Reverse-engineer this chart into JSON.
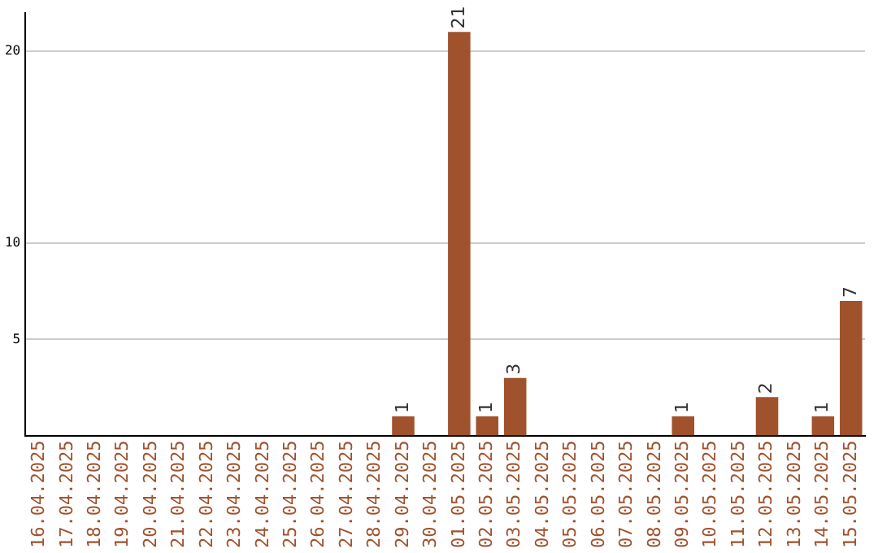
{
  "chart_data": {
    "type": "bar",
    "categories": [
      "16.04.2025",
      "17.04.2025",
      "18.04.2025",
      "19.04.2025",
      "20.04.2025",
      "21.04.2025",
      "22.04.2025",
      "23.04.2025",
      "24.04.2025",
      "25.04.2025",
      "26.04.2025",
      "27.04.2025",
      "28.04.2025",
      "29.04.2025",
      "30.04.2025",
      "01.05.2025",
      "02.05.2025",
      "03.05.2025",
      "04.05.2025",
      "05.05.2025",
      "06.05.2025",
      "07.05.2025",
      "08.05.2025",
      "09.05.2025",
      "10.05.2025",
      "11.05.2025",
      "12.05.2025",
      "13.05.2025",
      "14.05.2025",
      "15.05.2025"
    ],
    "values": [
      0,
      0,
      0,
      0,
      0,
      0,
      0,
      0,
      0,
      0,
      0,
      0,
      0,
      1,
      0,
      21,
      1,
      3,
      0,
      0,
      0,
      0,
      0,
      1,
      0,
      0,
      2,
      0,
      1,
      7
    ],
    "value_labels": [
      null,
      null,
      null,
      null,
      null,
      null,
      null,
      null,
      null,
      null,
      null,
      null,
      null,
      "1",
      null,
      "21",
      "1",
      "3",
      null,
      null,
      null,
      null,
      null,
      "1",
      null,
      null,
      "2",
      null,
      "1",
      "7"
    ],
    "color": "#a0522d",
    "ylim": [
      0,
      22
    ],
    "yticks": [
      5,
      10,
      20
    ],
    "grid": "y"
  }
}
